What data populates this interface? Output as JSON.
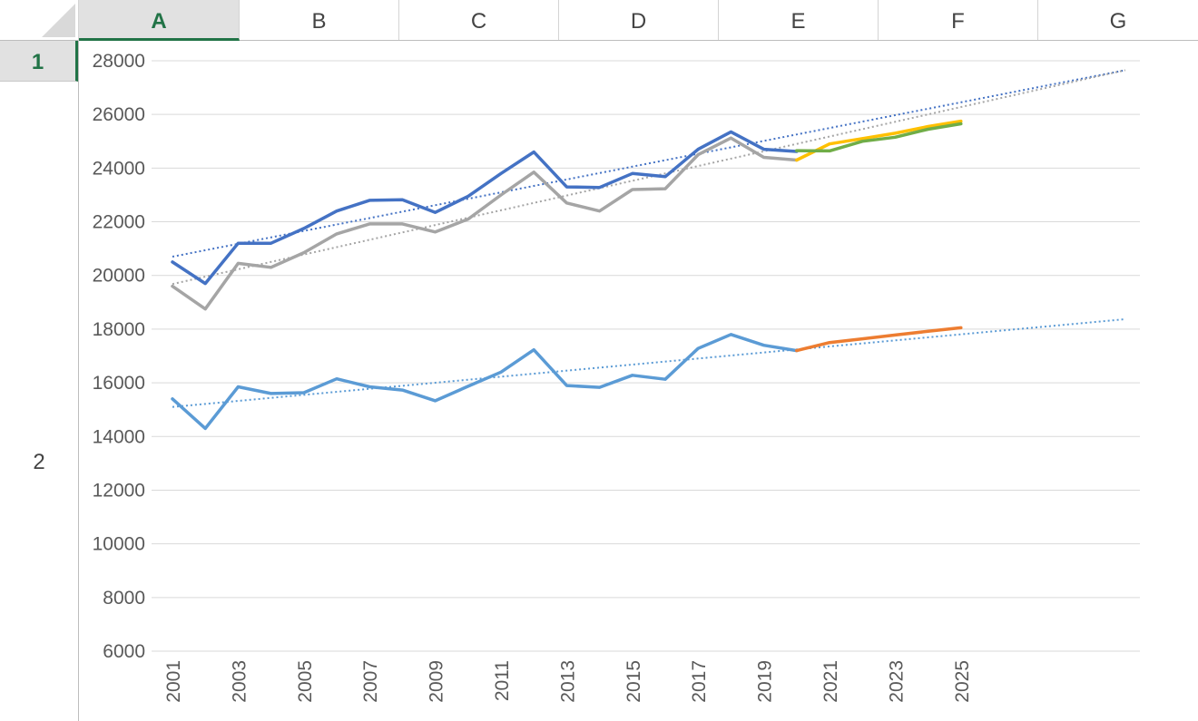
{
  "spreadsheet": {
    "columns": [
      "A",
      "B",
      "C",
      "D",
      "E",
      "F",
      "G"
    ],
    "selected_column": "A",
    "rows": [
      "1",
      "2"
    ],
    "selected_row": "1"
  },
  "colors": {
    "selection_accent": "#217346",
    "header_selected_bg": "#e1e1e1",
    "series_dark_blue": "#4472c4",
    "series_gray": "#a5a5a5",
    "series_light_blue": "#5b9bd5",
    "series_yellow": "#ffc000",
    "series_green": "#70ad47",
    "series_orange": "#ed7d31"
  },
  "chart_data": {
    "type": "line",
    "title": "",
    "xlabel": "",
    "ylabel": "",
    "ylim": [
      6000,
      28000
    ],
    "yticks": [
      6000,
      8000,
      10000,
      12000,
      14000,
      16000,
      18000,
      20000,
      22000,
      24000,
      26000,
      28000
    ],
    "xticks": [
      "2001",
      "2003",
      "2005",
      "2007",
      "2009",
      "2011",
      "2013",
      "2015",
      "2017",
      "2019",
      "2021",
      "2023",
      "2025"
    ],
    "x_range": [
      2001,
      2030
    ],
    "gridlines": "horizontal",
    "legend": "none",
    "series": [
      {
        "color": "#4472c4",
        "style": "solid",
        "x": [
          2001,
          2002,
          2003,
          2004,
          2005,
          2006,
          2007,
          2008,
          2009,
          2010,
          2011,
          2012,
          2013,
          2014,
          2015,
          2016,
          2017,
          2018,
          2019,
          2020
        ],
        "y": [
          20500,
          19700,
          21200,
          21200,
          21750,
          22400,
          22800,
          22820,
          22350,
          22950,
          23800,
          24600,
          23300,
          23280,
          23800,
          23680,
          24700,
          25350,
          24700,
          24620
        ]
      },
      {
        "color": "#a5a5a5",
        "style": "solid",
        "x": [
          2001,
          2002,
          2003,
          2004,
          2005,
          2006,
          2007,
          2008,
          2009,
          2010,
          2011,
          2012,
          2013,
          2014,
          2015,
          2016,
          2017,
          2018,
          2019,
          2020
        ],
        "y": [
          19600,
          18750,
          20450,
          20300,
          20850,
          21550,
          21920,
          21920,
          21620,
          22100,
          23000,
          23850,
          22700,
          22400,
          23200,
          23230,
          24500,
          25120,
          24400,
          24300
        ]
      },
      {
        "color": "#5b9bd5",
        "style": "solid",
        "x": [
          2001,
          2002,
          2003,
          2004,
          2005,
          2006,
          2007,
          2008,
          2009,
          2010,
          2011,
          2012,
          2013,
          2014,
          2015,
          2016,
          2017,
          2018,
          2019,
          2020
        ],
        "y": [
          15400,
          14300,
          15850,
          15600,
          15630,
          16150,
          15850,
          15730,
          15330,
          15870,
          16400,
          17230,
          15900,
          15830,
          16280,
          16130,
          17280,
          17800,
          17400,
          17200
        ]
      },
      {
        "color": "#ffc000",
        "style": "solid",
        "x": [
          2020,
          2021,
          2022,
          2023,
          2024,
          2025
        ],
        "y": [
          24300,
          24900,
          25100,
          25300,
          25550,
          25750
        ]
      },
      {
        "color": "#70ad47",
        "style": "solid",
        "x": [
          2020,
          2021,
          2022,
          2023,
          2024,
          2025
        ],
        "y": [
          24650,
          24640,
          25000,
          25150,
          25450,
          25650
        ]
      },
      {
        "color": "#ed7d31",
        "style": "solid",
        "x": [
          2020,
          2021,
          2022,
          2023,
          2024,
          2025
        ],
        "y": [
          17200,
          17500,
          17640,
          17780,
          17920,
          18050
        ]
      }
    ],
    "trendlines": [
      {
        "color": "#4472c4",
        "style": "dotted",
        "x": [
          2001,
          2030
        ],
        "y": [
          20700,
          27650
        ]
      },
      {
        "color": "#a5a5a5",
        "style": "dotted",
        "x": [
          2001,
          2030
        ],
        "y": [
          19680,
          27650
        ]
      },
      {
        "color": "#5b9bd5",
        "style": "dotted",
        "x": [
          2001,
          2030
        ],
        "y": [
          15100,
          18370
        ]
      }
    ]
  }
}
